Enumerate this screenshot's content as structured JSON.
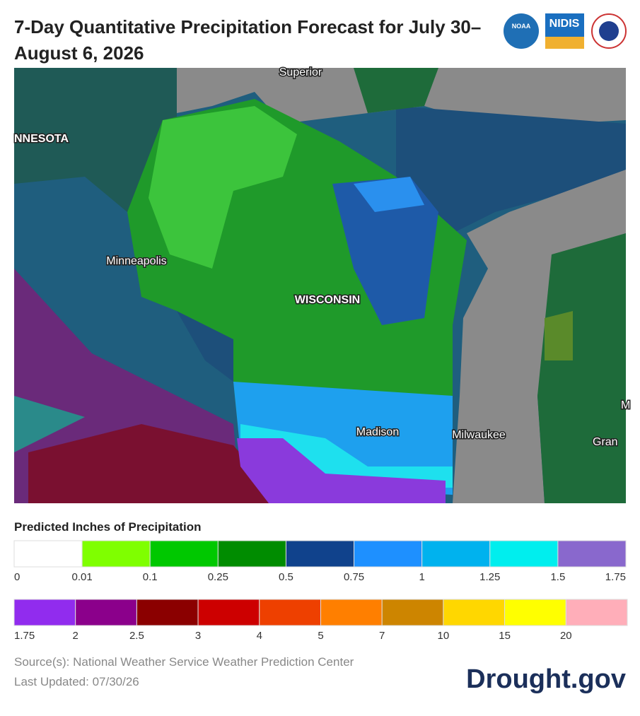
{
  "header": {
    "title": "7-Day Quantitative Precipitation Forecast for July 30–August 6, 2026",
    "logos": [
      "NOAA",
      "NIDIS"
    ]
  },
  "map": {
    "labels": [
      "Superior",
      "NNESOTA",
      "Minneapolis",
      "WISCONSIN",
      "Madison",
      "Milwaukee",
      "Gran",
      "M"
    ]
  },
  "legend": {
    "title": "Predicted Inches of Precipitation",
    "rows": [
      {
        "colors": [
          "#ffffff",
          "#7fff00",
          "#00c800",
          "#008c00",
          "#10428c",
          "#1e90ff",
          "#00b2ee",
          "#00eeee",
          "#8968cd"
        ],
        "ticks": [
          0,
          0.01,
          0.1,
          0.25,
          0.5,
          0.75,
          1,
          1.25,
          1.5,
          1.75
        ]
      },
      {
        "colors": [
          "#912cee",
          "#8b008b",
          "#8b0000",
          "#cd0000",
          "#ee4000",
          "#ff7f00",
          "#cd8500",
          "#ffd700",
          "#ffff00",
          "#ffaeb9"
        ],
        "ticks": [
          1.75,
          2,
          2.5,
          3,
          4,
          5,
          7,
          10,
          15,
          20
        ]
      }
    ]
  },
  "footer": {
    "source": "Source(s): National Weather Service Weather Prediction Center",
    "updated": "Last Updated: 07/30/26",
    "brand": "Drought.gov"
  }
}
